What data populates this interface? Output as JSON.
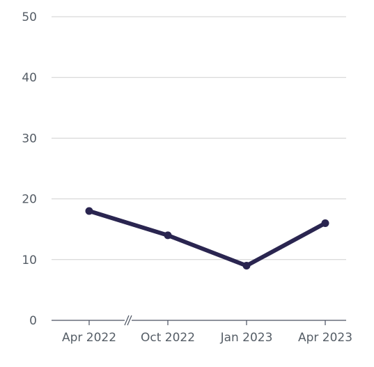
{
  "chart_data": {
    "type": "line",
    "title": "",
    "xlabel": "",
    "ylabel": "",
    "categories": [
      "Apr 2022",
      "Oct 2022",
      "Jan 2023",
      "Apr 2023"
    ],
    "axis_break_between": [
      "Apr 2022",
      "Oct 2022"
    ],
    "series": [
      {
        "values": [
          18,
          14,
          9,
          16
        ],
        "color": "#2a2550"
      }
    ],
    "ylim": [
      0,
      50
    ],
    "yticks": [
      0,
      10,
      20,
      30,
      40,
      50
    ],
    "grid": true,
    "legend": "none"
  }
}
